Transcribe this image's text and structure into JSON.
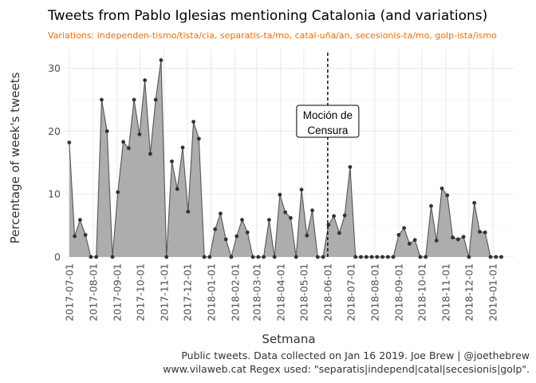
{
  "colors": {
    "subtitle": "#e8700c",
    "area": "#adadad",
    "line": "#555555",
    "point": "#333333",
    "grid": "#e8e8e8"
  },
  "chart_data": {
    "type": "area",
    "title": "Tweets from Pablo Iglesias mentioning Catalonia (and variations)",
    "subtitle": "Variations: independen-tismo/tista/cia, separatis-ta/mo, catal-uña/an, secesionis-ta/mo, golp-ista/ismo",
    "xlabel": "Setmana",
    "ylabel": "Percentage of week's tweets",
    "ylim": [
      0,
      33
    ],
    "xlim": [
      "2017-06-26",
      "2019-01-28"
    ],
    "yticks": [
      0,
      10,
      20,
      30
    ],
    "xticks": [
      "2017-07-01",
      "2017-08-01",
      "2017-09-01",
      "2017-10-01",
      "2017-11-01",
      "2017-12-01",
      "2018-01-01",
      "2018-02-01",
      "2018-03-01",
      "2018-04-01",
      "2018-05-01",
      "2018-06-01",
      "2018-07-01",
      "2018-08-01",
      "2018-09-01",
      "2018-10-01",
      "2018-11-01",
      "2018-12-01",
      "2019-01-01"
    ],
    "grid": true,
    "annotation": {
      "lines": [
        "Moción de",
        "Censura"
      ],
      "date": "2018-06-01",
      "style": "dashed vertical line"
    },
    "caption": [
      "Public tweets. Data collected on Jan 16 2019. Joe Brew | @joethebrew",
      "www.vilaweb.cat Regex used: \"separatis|independ|catal|secesionis|golp\"."
    ],
    "series": [
      {
        "x": [
          "2017-07-01",
          "2017-07-08",
          "2017-07-15",
          "2017-07-22",
          "2017-07-29",
          "2017-08-05",
          "2017-08-12",
          "2017-08-19",
          "2017-08-26",
          "2017-09-02",
          "2017-09-09",
          "2017-09-16",
          "2017-09-23",
          "2017-09-30",
          "2017-10-07",
          "2017-10-14",
          "2017-10-21",
          "2017-10-28",
          "2017-11-04",
          "2017-11-11",
          "2017-11-18",
          "2017-11-25",
          "2017-12-02",
          "2017-12-09",
          "2017-12-16",
          "2017-12-23",
          "2017-12-30",
          "2018-01-06",
          "2018-01-13",
          "2018-01-20",
          "2018-01-27",
          "2018-02-03",
          "2018-02-10",
          "2018-02-17",
          "2018-02-24",
          "2018-03-03",
          "2018-03-10",
          "2018-03-17",
          "2018-03-24",
          "2018-03-31",
          "2018-04-07",
          "2018-04-14",
          "2018-04-21",
          "2018-04-28",
          "2018-05-05",
          "2018-05-12",
          "2018-05-19",
          "2018-05-26",
          "2018-06-02",
          "2018-06-09",
          "2018-06-16",
          "2018-06-23",
          "2018-06-30",
          "2018-07-07",
          "2018-07-14",
          "2018-07-21",
          "2018-07-28",
          "2018-08-04",
          "2018-08-11",
          "2018-08-18",
          "2018-08-25",
          "2018-09-01",
          "2018-09-08",
          "2018-09-15",
          "2018-09-22",
          "2018-09-29",
          "2018-10-06",
          "2018-10-13",
          "2018-10-20",
          "2018-10-27",
          "2018-11-03",
          "2018-11-10",
          "2018-11-17",
          "2018-11-24",
          "2018-12-01",
          "2018-12-08",
          "2018-12-15",
          "2018-12-22",
          "2018-12-29",
          "2019-01-05",
          "2019-01-12"
        ],
        "y": [
          18.2,
          3.3,
          5.9,
          3.5,
          0,
          0,
          25,
          20,
          0,
          10.3,
          18.3,
          17.3,
          25,
          19.5,
          28.1,
          16.4,
          25,
          31.3,
          0,
          15.2,
          10.8,
          17.4,
          7.2,
          21.5,
          18.8,
          0,
          0,
          4.4,
          6.9,
          2.8,
          0,
          3.3,
          5.9,
          3.9,
          0,
          0,
          0,
          5.9,
          0,
          9.9,
          7.1,
          6.2,
          0,
          10.7,
          3.4,
          7.4,
          0,
          0,
          5.1,
          6.5,
          3.8,
          6.6,
          14.3,
          0,
          0,
          0,
          0,
          0,
          0,
          0,
          0,
          3.5,
          4.6,
          2.1,
          2.7,
          0,
          0,
          8.1,
          2.6,
          10.9,
          9.8,
          3.1,
          2.8,
          3.2,
          0,
          8.6,
          4,
          3.9,
          0,
          0,
          0
        ]
      }
    ]
  }
}
